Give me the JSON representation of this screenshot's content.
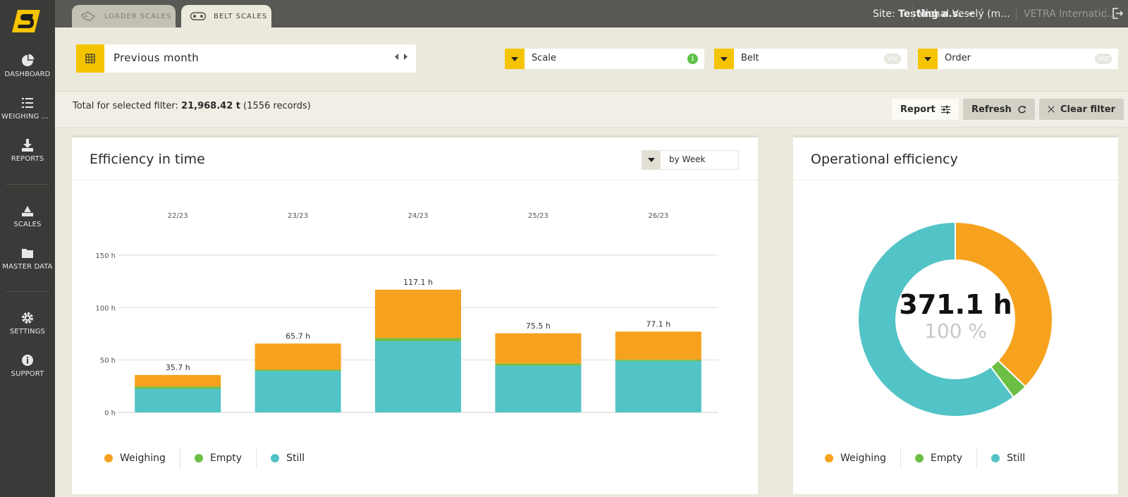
{
  "sidebar": {
    "items": [
      {
        "label": "DASHBOARD",
        "icon": "pie-chart-icon"
      },
      {
        "label": "WEIGHING D...",
        "icon": "list-icon"
      },
      {
        "label": "REPORTS",
        "icon": "download-icon"
      },
      {
        "label": "SCALES",
        "icon": "scale-icon"
      },
      {
        "label": "MASTER DATA",
        "icon": "folder-icon"
      },
      {
        "label": "SETTINGS",
        "icon": "gear-icon"
      },
      {
        "label": "SUPPORT",
        "icon": "info-icon"
      }
    ]
  },
  "topbar": {
    "tabs": [
      {
        "label": "LOADER SCALES",
        "icon": "loader-icon",
        "active": false
      },
      {
        "label": "BELT SCALES",
        "icon": "belt-icon",
        "active": true
      }
    ],
    "site_prefix": "Site:",
    "site_name": "Testing a.s.",
    "user": "Michal Veselý (m...",
    "org": "VETRA Internatio..."
  },
  "filters": {
    "period": "Previous month",
    "scale": {
      "label": "Scale",
      "badge": "1"
    },
    "belt": {
      "label": "Belt",
      "badge": "VŠE"
    },
    "order": {
      "label": "Order",
      "badge": "VŠE"
    }
  },
  "summary": {
    "prefix": "Total for selected filter:",
    "total": "21,968.42 t",
    "records": "(1556 records)",
    "report_label": "Report",
    "refresh_label": "Refresh",
    "clear_label": "Clear filter"
  },
  "efficiency_card": {
    "title": "Efficiency in time",
    "period_select": "by Week"
  },
  "operational_card": {
    "title": "Operational efficiency",
    "total": "371.1 h",
    "percent": "100 %"
  },
  "colors": {
    "weighing": "#f6a21e",
    "empty": "#6cbe45",
    "still": "#52c3c6",
    "accent": "#f5c400"
  },
  "legend": {
    "weighing": "Weighing",
    "empty": "Empty",
    "still": "Still"
  },
  "chart_data": [
    {
      "type": "bar",
      "stacked": true,
      "categories": [
        "22/23",
        "23/23",
        "24/23",
        "25/23",
        "26/23"
      ],
      "series": [
        {
          "name": "Still",
          "values": [
            22.5,
            39.5,
            68.0,
            44.5,
            49.0
          ]
        },
        {
          "name": "Empty",
          "values": [
            2.2,
            1.2,
            3.0,
            2.0,
            1.3
          ]
        },
        {
          "name": "Weighing",
          "values": [
            11.0,
            25.0,
            46.1,
            29.0,
            26.8
          ]
        }
      ],
      "totals": [
        "35.7 h",
        "65.7 h",
        "117.1 h",
        "75.5 h",
        "77.1 h"
      ],
      "yticks": [
        "0 h",
        "50 h",
        "100 h",
        "150 h"
      ],
      "ytick_values": [
        0,
        50,
        100,
        150
      ],
      "ylim": [
        0,
        150
      ],
      "grid": true,
      "legend": "bottom-left"
    },
    {
      "type": "pie",
      "donut": true,
      "labels": [
        "Weighing",
        "Empty",
        "Still"
      ],
      "values": [
        137.9,
        9.7,
        223.5
      ],
      "center_value": "371.1 h",
      "center_label": "100 %",
      "legend": "bottom"
    }
  ]
}
